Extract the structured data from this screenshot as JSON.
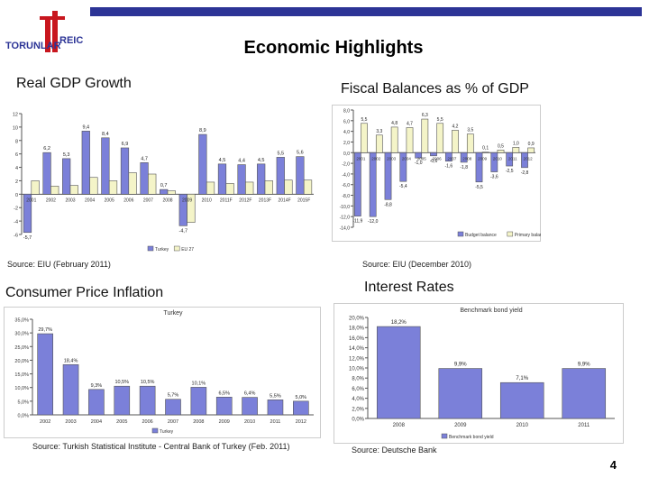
{
  "slide": {
    "logo_text": "TORUNLAR REIC",
    "title": "Economic Highlights",
    "page_number": "4"
  },
  "sections": {
    "gdp_title": "Real GDP Growth",
    "fiscal_title": "Fiscal Balances as % of GDP",
    "cpi_title": "Consumer Price Inflation",
    "rates_title": "Interest Rates"
  },
  "sources": {
    "gdp": "Source: EIU (February 2011)",
    "fiscal": "Source: EIU (December 2010)",
    "cpi": "Source: Turkish Statistical Institute - Central Bank of Turkey (Feb. 2011)",
    "rates": "Source: Deutsche Bank"
  },
  "colors": {
    "topbar": "#2c3496",
    "gdp_turkey": "#7b80d9",
    "gdp_europe": "#f4f4c8",
    "fiscal_budget": "#7b80d9",
    "fiscal_primary": "#f4f4c8",
    "cpi_bar": "#7b80d9",
    "rate_bar": "#7b80d9",
    "logo_red": "#c8161e",
    "logo_blue": "#2c3496"
  },
  "chart_data": [
    {
      "id": "gdp",
      "type": "bar",
      "categories": [
        "2001",
        "2002",
        "2003",
        "2004",
        "2005",
        "2006",
        "2007",
        "2008",
        "2009",
        "2010",
        "2011F",
        "2012F",
        "2013F",
        "2014F",
        "2015F"
      ],
      "series": [
        {
          "name": "Turkey",
          "values": [
            -5.7,
            6.2,
            5.3,
            9.4,
            8.4,
            6.9,
            4.7,
            0.7,
            -4.7,
            8.9,
            4.5,
            4.4,
            4.5,
            5.5,
            5.6
          ]
        },
        {
          "name": "EU 27",
          "values": [
            2.0,
            1.2,
            1.3,
            2.5,
            2.0,
            3.2,
            3.0,
            0.5,
            -4.2,
            1.8,
            1.6,
            1.8,
            2.0,
            2.1,
            2.1
          ]
        }
      ],
      "labels_turkey": [
        "-5,7",
        "6,2",
        "5,3",
        "9,4",
        "8,4",
        "6,9",
        "4,7",
        "0,7",
        "-4,7",
        "8,9",
        "4,5",
        "4,4",
        "4,5",
        "5,5",
        "5,6"
      ],
      "yticks": [
        "-6",
        "-4",
        "-2",
        "0",
        "2",
        "4",
        "6",
        "8",
        "10",
        "12"
      ],
      "ylim": [
        -6,
        12
      ],
      "grid": false,
      "legend": "bottom-right"
    },
    {
      "id": "fiscal",
      "type": "bar",
      "categories": [
        "2001",
        "2002",
        "2003",
        "2004",
        "2005",
        "2006",
        "2007",
        "2008",
        "2009",
        "2010",
        "2011",
        "2012"
      ],
      "series": [
        {
          "name": "Budget balance",
          "values": [
            -11.9,
            -12.0,
            -8.8,
            -5.4,
            -1.0,
            -0.6,
            -1.6,
            -1.8,
            -5.5,
            -3.6,
            -2.5,
            -2.8
          ]
        },
        {
          "name": "Primary balance",
          "values": [
            5.5,
            3.3,
            4.8,
            4.7,
            6.3,
            5.5,
            4.2,
            3.5,
            0.1,
            0.5,
            1.0,
            0.9
          ]
        }
      ],
      "budget_labels": [
        "-11,9",
        "-12,0",
        "-8,8",
        "-5,4",
        "-1,0",
        "-0,6",
        "-1,6",
        "-1,8",
        "-5,5",
        "-3,6",
        "-2,5",
        "-2,8"
      ],
      "primary_labels": [
        "5,5",
        "3,3",
        "4,8",
        "4,7",
        "6,3",
        "5,5",
        "4,2",
        "3,5",
        "0,1",
        "0,5",
        "1,0",
        "0,9"
      ],
      "yticks": [
        "-14,0",
        "-12,0",
        "-10,0",
        "-8,0",
        "-6,0",
        "-4,0",
        "-2,0",
        "0,0",
        "2,0",
        "4,0",
        "6,0",
        "8,0"
      ],
      "ylim": [
        -14,
        8
      ],
      "grid": false,
      "legend": "bottom"
    },
    {
      "id": "cpi",
      "type": "bar",
      "title": "Turkey",
      "categories": [
        "2002",
        "2003",
        "2004",
        "2005",
        "2006",
        "2007",
        "2008",
        "2009",
        "2010",
        "2011",
        "2012"
      ],
      "series": [
        {
          "name": "Turkey",
          "values": [
            29.7,
            18.4,
            9.3,
            10.5,
            10.5,
            5.7,
            10.1,
            6.5,
            6.4,
            5.5,
            5.0
          ]
        }
      ],
      "data_labels": [
        "29,7%",
        "18,4%",
        "9,3%",
        "10,5%",
        "10,5%",
        "5,7%",
        "10,1%",
        "6,5%",
        "6,4%",
        "5,5%",
        "5,0%"
      ],
      "yticks": [
        "0,0%",
        "5,0%",
        "10,0%",
        "15,0%",
        "20,0%",
        "25,0%",
        "30,0%",
        "35,0%"
      ],
      "ylim": [
        0,
        35
      ],
      "grid": false,
      "legend": "bottom"
    },
    {
      "id": "rates",
      "type": "bar",
      "title": "Benchmark bond yield",
      "categories": [
        "2008",
        "2009",
        "2010",
        "2011"
      ],
      "series": [
        {
          "name": "Benchmark bond yield",
          "values": [
            18.2,
            9.9,
            7.1,
            9.9
          ]
        }
      ],
      "data_labels": [
        "18,2%",
        "9,9%",
        "7,1%",
        "9,9%"
      ],
      "yticks": [
        "0,0%",
        "2,0%",
        "4,0%",
        "6,0%",
        "8,0%",
        "10,0%",
        "12,0%",
        "14,0%",
        "16,0%",
        "18,0%",
        "20,0%"
      ],
      "ylim": [
        0,
        20
      ],
      "grid": false,
      "legend": "bottom"
    }
  ]
}
